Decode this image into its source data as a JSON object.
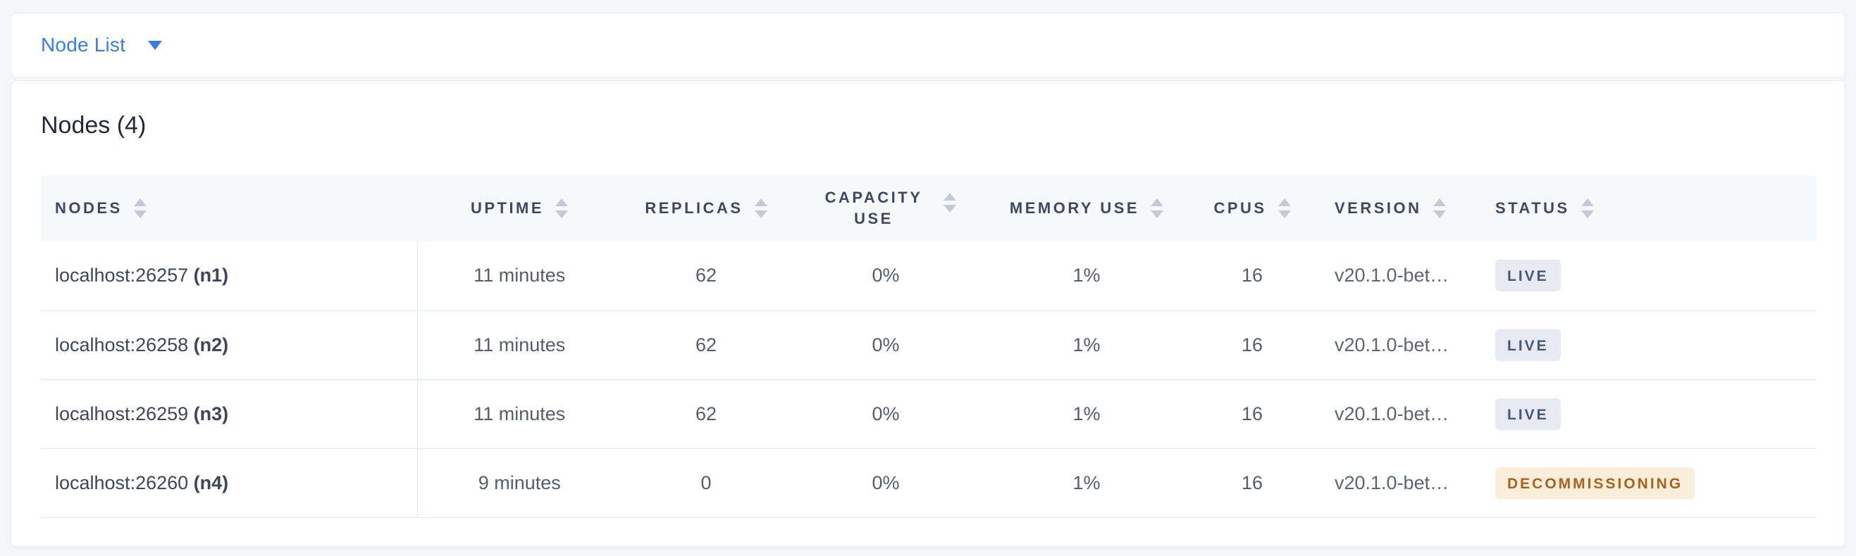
{
  "toolbar": {
    "dropdown_label": "Node List"
  },
  "panel": {
    "title": "Nodes (4)"
  },
  "table": {
    "columns": {
      "nodes": "NODES",
      "uptime": "UPTIME",
      "replicas": "REPLICAS",
      "capacity_use": "CAPACITY USE",
      "memory_use": "MEMORY USE",
      "cpus": "CPUS",
      "version": "VERSION",
      "status": "STATUS"
    },
    "rows": [
      {
        "address": "localhost:26257",
        "node_id": "(n1)",
        "uptime": "11 minutes",
        "replicas": "62",
        "capacity_use": "0%",
        "memory_use": "1%",
        "cpus": "16",
        "version": "v20.1.0-bet…",
        "status": "LIVE",
        "status_type": "live"
      },
      {
        "address": "localhost:26258",
        "node_id": "(n2)",
        "uptime": "11 minutes",
        "replicas": "62",
        "capacity_use": "0%",
        "memory_use": "1%",
        "cpus": "16",
        "version": "v20.1.0-bet…",
        "status": "LIVE",
        "status_type": "live"
      },
      {
        "address": "localhost:26259",
        "node_id": "(n3)",
        "uptime": "11 minutes",
        "replicas": "62",
        "capacity_use": "0%",
        "memory_use": "1%",
        "cpus": "16",
        "version": "v20.1.0-bet…",
        "status": "LIVE",
        "status_type": "live"
      },
      {
        "address": "localhost:26260",
        "node_id": "(n4)",
        "uptime": "9 minutes",
        "replicas": "0",
        "capacity_use": "0%",
        "memory_use": "1%",
        "cpus": "16",
        "version": "v20.1.0-bet…",
        "status": "DECOMMISSIONING",
        "status_type": "decommissioning"
      }
    ]
  },
  "colors": {
    "accent_blue": "#3a7de1",
    "live_badge_bg": "#e7eaf3",
    "live_badge_text": "#475872",
    "decommissioning_badge_bg": "#f9eed9",
    "decommissioning_badge_text": "#a8621f"
  }
}
